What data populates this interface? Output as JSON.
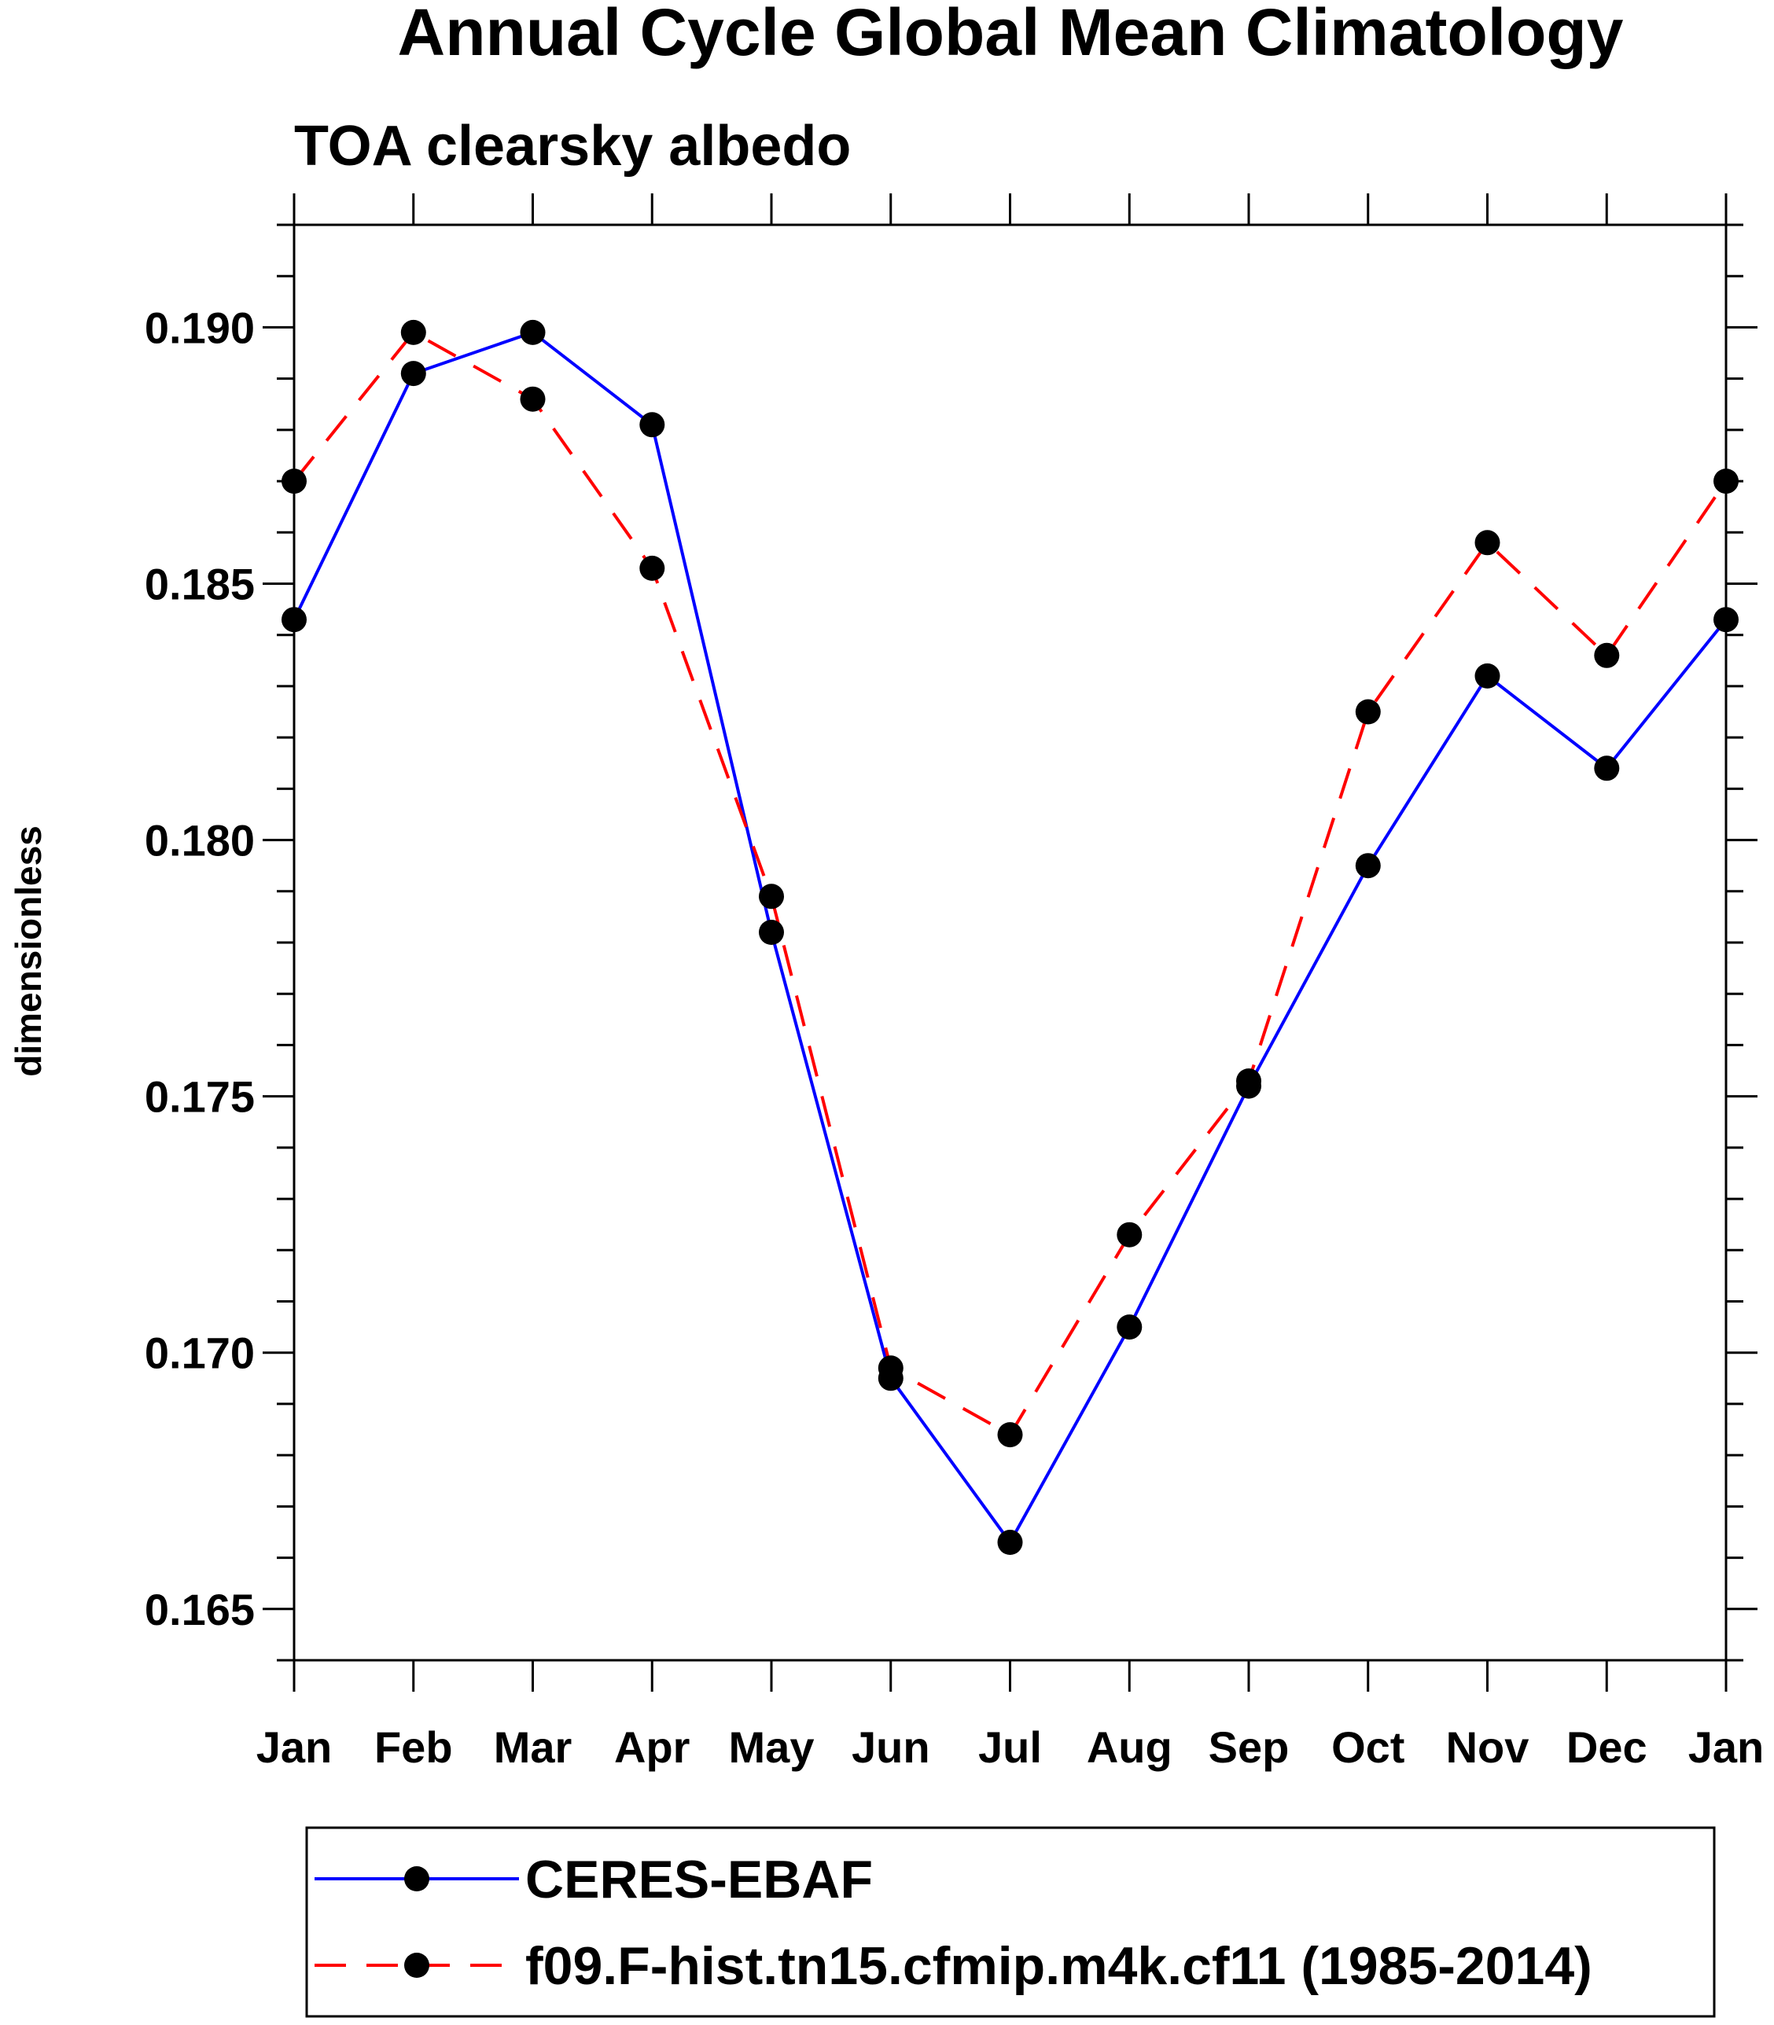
{
  "chart_data": {
    "type": "line",
    "title": "Annual Cycle Global Mean Climatology",
    "subtitle": "TOA clearsky albedo",
    "xlabel": "",
    "ylabel": "dimensionless",
    "categories": [
      "Jan",
      "Feb",
      "Mar",
      "Apr",
      "May",
      "Jun",
      "Jul",
      "Aug",
      "Sep",
      "Oct",
      "Nov",
      "Dec",
      "Jan"
    ],
    "ylim": [
      0.164,
      0.192
    ],
    "yticks": [
      "0.165",
      "0.170",
      "0.175",
      "0.180",
      "0.185",
      "0.190"
    ],
    "legend_position": "bottom",
    "series": [
      {
        "name": "CERES-EBAF",
        "color": "#0000ff",
        "dash": "solid",
        "values": [
          0.1843,
          0.1891,
          0.1899,
          0.1881,
          0.1782,
          0.1695,
          0.1663,
          0.1705,
          0.1752,
          0.1795,
          0.1832,
          0.1814,
          0.1843
        ]
      },
      {
        "name": "f09.F-hist.tn15.cfmip.m4k.cf11 (1985-2014)",
        "color": "#ff0000",
        "dash": "dashed",
        "values": [
          0.187,
          0.1899,
          0.1886,
          0.1853,
          0.1789,
          0.1697,
          0.1684,
          0.1723,
          0.1753,
          0.1825,
          0.1858,
          0.1836,
          0.187
        ]
      }
    ]
  }
}
